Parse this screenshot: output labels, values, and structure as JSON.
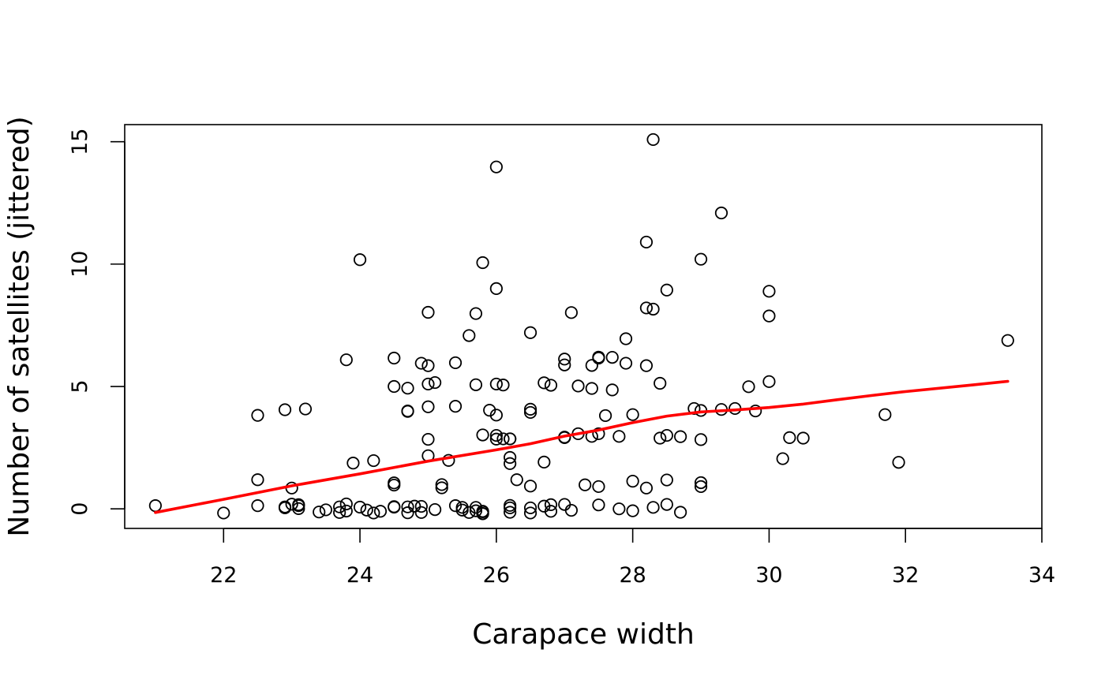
{
  "chart_data": {
    "type": "scatter",
    "title": "",
    "xlabel": "Carapace width",
    "ylabel": "Number of satellites (jittered)",
    "xlim": [
      20.55,
      34.0
    ],
    "ylim": [
      -0.8,
      15.7
    ],
    "xticks": [
      22,
      24,
      26,
      28,
      30,
      32,
      34
    ],
    "yticks": [
      0,
      5,
      10,
      15
    ],
    "grid": false,
    "legend": "none",
    "colors": {
      "points": "#000000",
      "smooth_line": "#ff0000"
    },
    "series": [
      {
        "kind": "points",
        "marker": "open-circle",
        "points": [
          [
            21.0,
            0.13
          ],
          [
            22.0,
            -0.17
          ],
          [
            22.5,
            3.82
          ],
          [
            22.5,
            1.19
          ],
          [
            22.5,
            0.13
          ],
          [
            22.9,
            4.05
          ],
          [
            22.9,
            0.04
          ],
          [
            22.9,
            0.08
          ],
          [
            23.0,
            0.85
          ],
          [
            23.0,
            0.19
          ],
          [
            23.1,
            0.17
          ],
          [
            23.1,
            0.01
          ],
          [
            23.1,
            0.13
          ],
          [
            23.2,
            4.08
          ],
          [
            23.4,
            -0.13
          ],
          [
            23.5,
            -0.04
          ],
          [
            23.7,
            0.08
          ],
          [
            23.7,
            -0.15
          ],
          [
            23.8,
            6.09
          ],
          [
            23.8,
            0.2
          ],
          [
            23.8,
            -0.09
          ],
          [
            23.9,
            1.87
          ],
          [
            24.0,
            10.18
          ],
          [
            24.0,
            0.07
          ],
          [
            24.1,
            -0.05
          ],
          [
            24.2,
            1.97
          ],
          [
            24.2,
            -0.17
          ],
          [
            24.3,
            -0.1
          ],
          [
            24.5,
            6.16
          ],
          [
            24.5,
            5.0
          ],
          [
            24.5,
            1.06
          ],
          [
            24.5,
            0.97
          ],
          [
            24.5,
            0.09
          ],
          [
            24.5,
            0.07
          ],
          [
            24.7,
            4.93
          ],
          [
            24.7,
            3.98
          ],
          [
            24.7,
            4.0
          ],
          [
            24.7,
            0.08
          ],
          [
            24.7,
            -0.16
          ],
          [
            24.8,
            0.11
          ],
          [
            24.9,
            5.95
          ],
          [
            24.9,
            0.1
          ],
          [
            24.9,
            -0.15
          ],
          [
            25.0,
            8.03
          ],
          [
            25.0,
            5.85
          ],
          [
            25.0,
            5.1
          ],
          [
            25.0,
            4.17
          ],
          [
            25.0,
            2.84
          ],
          [
            25.0,
            2.17
          ],
          [
            25.1,
            5.16
          ],
          [
            25.1,
            -0.03
          ],
          [
            25.2,
            0.99
          ],
          [
            25.2,
            0.86
          ],
          [
            25.3,
            1.98
          ],
          [
            25.4,
            5.97
          ],
          [
            25.4,
            4.19
          ],
          [
            25.4,
            0.13
          ],
          [
            25.5,
            -0.05
          ],
          [
            25.5,
            0.06
          ],
          [
            25.6,
            7.08
          ],
          [
            25.6,
            -0.15
          ],
          [
            25.7,
            7.98
          ],
          [
            25.7,
            5.07
          ],
          [
            25.7,
            0.06
          ],
          [
            25.7,
            -0.08
          ],
          [
            25.8,
            10.06
          ],
          [
            25.8,
            3.02
          ],
          [
            25.8,
            -0.1
          ],
          [
            25.8,
            -0.19
          ],
          [
            25.8,
            -0.12
          ],
          [
            25.8,
            -0.2
          ],
          [
            25.9,
            4.03
          ],
          [
            26.0,
            13.97
          ],
          [
            26.0,
            9.0
          ],
          [
            26.0,
            5.1
          ],
          [
            26.0,
            3.83
          ],
          [
            26.0,
            3.0
          ],
          [
            26.0,
            2.85
          ],
          [
            26.1,
            5.06
          ],
          [
            26.1,
            2.86
          ],
          [
            26.2,
            2.86
          ],
          [
            26.2,
            2.86
          ],
          [
            26.2,
            2.1
          ],
          [
            26.2,
            1.85
          ],
          [
            26.2,
            0.14
          ],
          [
            26.2,
            -0.14
          ],
          [
            26.2,
            0.04
          ],
          [
            26.3,
            1.19
          ],
          [
            26.5,
            7.2
          ],
          [
            26.5,
            4.07
          ],
          [
            26.5,
            3.94
          ],
          [
            26.5,
            0.93
          ],
          [
            26.5,
            0.04
          ],
          [
            26.5,
            -0.17
          ],
          [
            26.7,
            5.15
          ],
          [
            26.7,
            1.91
          ],
          [
            26.7,
            0.11
          ],
          [
            26.8,
            5.05
          ],
          [
            26.8,
            0.17
          ],
          [
            26.8,
            -0.1
          ],
          [
            27.0,
            6.12
          ],
          [
            27.0,
            5.88
          ],
          [
            27.0,
            2.93
          ],
          [
            27.0,
            2.91
          ],
          [
            27.0,
            0.18
          ],
          [
            27.1,
            8.02
          ],
          [
            27.1,
            -0.06
          ],
          [
            27.2,
            5.02
          ],
          [
            27.2,
            3.07
          ],
          [
            27.3,
            0.98
          ],
          [
            27.4,
            5.86
          ],
          [
            27.4,
            4.92
          ],
          [
            27.4,
            2.96
          ],
          [
            27.5,
            6.2
          ],
          [
            27.5,
            6.16
          ],
          [
            27.5,
            3.07
          ],
          [
            27.5,
            0.91
          ],
          [
            27.5,
            0.16
          ],
          [
            27.6,
            3.81
          ],
          [
            27.7,
            6.19
          ],
          [
            27.7,
            4.86
          ],
          [
            27.8,
            2.96
          ],
          [
            27.8,
            0.0
          ],
          [
            27.9,
            6.95
          ],
          [
            27.9,
            5.95
          ],
          [
            28.0,
            3.85
          ],
          [
            28.0,
            1.13
          ],
          [
            28.0,
            -0.08
          ],
          [
            28.2,
            10.9
          ],
          [
            28.2,
            8.21
          ],
          [
            28.2,
            5.85
          ],
          [
            28.2,
            0.85
          ],
          [
            28.3,
            15.09
          ],
          [
            28.3,
            8.16
          ],
          [
            28.3,
            0.06
          ],
          [
            28.4,
            5.13
          ],
          [
            28.4,
            2.89
          ],
          [
            28.5,
            8.94
          ],
          [
            28.5,
            3.0
          ],
          [
            28.5,
            1.18
          ],
          [
            28.5,
            0.18
          ],
          [
            28.7,
            2.95
          ],
          [
            28.7,
            -0.14
          ],
          [
            28.9,
            4.1
          ],
          [
            29.0,
            10.2
          ],
          [
            29.0,
            4.02
          ],
          [
            29.0,
            2.83
          ],
          [
            29.0,
            1.07
          ],
          [
            29.0,
            0.91
          ],
          [
            29.3,
            12.09
          ],
          [
            29.3,
            4.06
          ],
          [
            29.5,
            4.1
          ],
          [
            29.7,
            4.99
          ],
          [
            29.8,
            4.0
          ],
          [
            30.0,
            8.89
          ],
          [
            30.0,
            7.88
          ],
          [
            30.0,
            5.2
          ],
          [
            30.2,
            2.05
          ],
          [
            30.3,
            2.91
          ],
          [
            30.5,
            2.89
          ],
          [
            31.7,
            3.85
          ],
          [
            31.9,
            1.9
          ],
          [
            33.5,
            6.88
          ]
        ]
      },
      {
        "kind": "line",
        "line": [
          [
            21.0,
            -0.15
          ],
          [
            22.0,
            0.39
          ],
          [
            23.0,
            0.94
          ],
          [
            24.0,
            1.43
          ],
          [
            25.0,
            1.95
          ],
          [
            26.0,
            2.41
          ],
          [
            26.5,
            2.66
          ],
          [
            27.0,
            2.97
          ],
          [
            27.5,
            3.22
          ],
          [
            28.0,
            3.52
          ],
          [
            28.5,
            3.79
          ],
          [
            29.0,
            3.96
          ],
          [
            29.5,
            4.04
          ],
          [
            30.0,
            4.14
          ],
          [
            30.5,
            4.28
          ],
          [
            31.0,
            4.46
          ],
          [
            31.5,
            4.63
          ],
          [
            32.0,
            4.79
          ],
          [
            33.0,
            5.07
          ],
          [
            33.5,
            5.21
          ]
        ]
      }
    ]
  }
}
